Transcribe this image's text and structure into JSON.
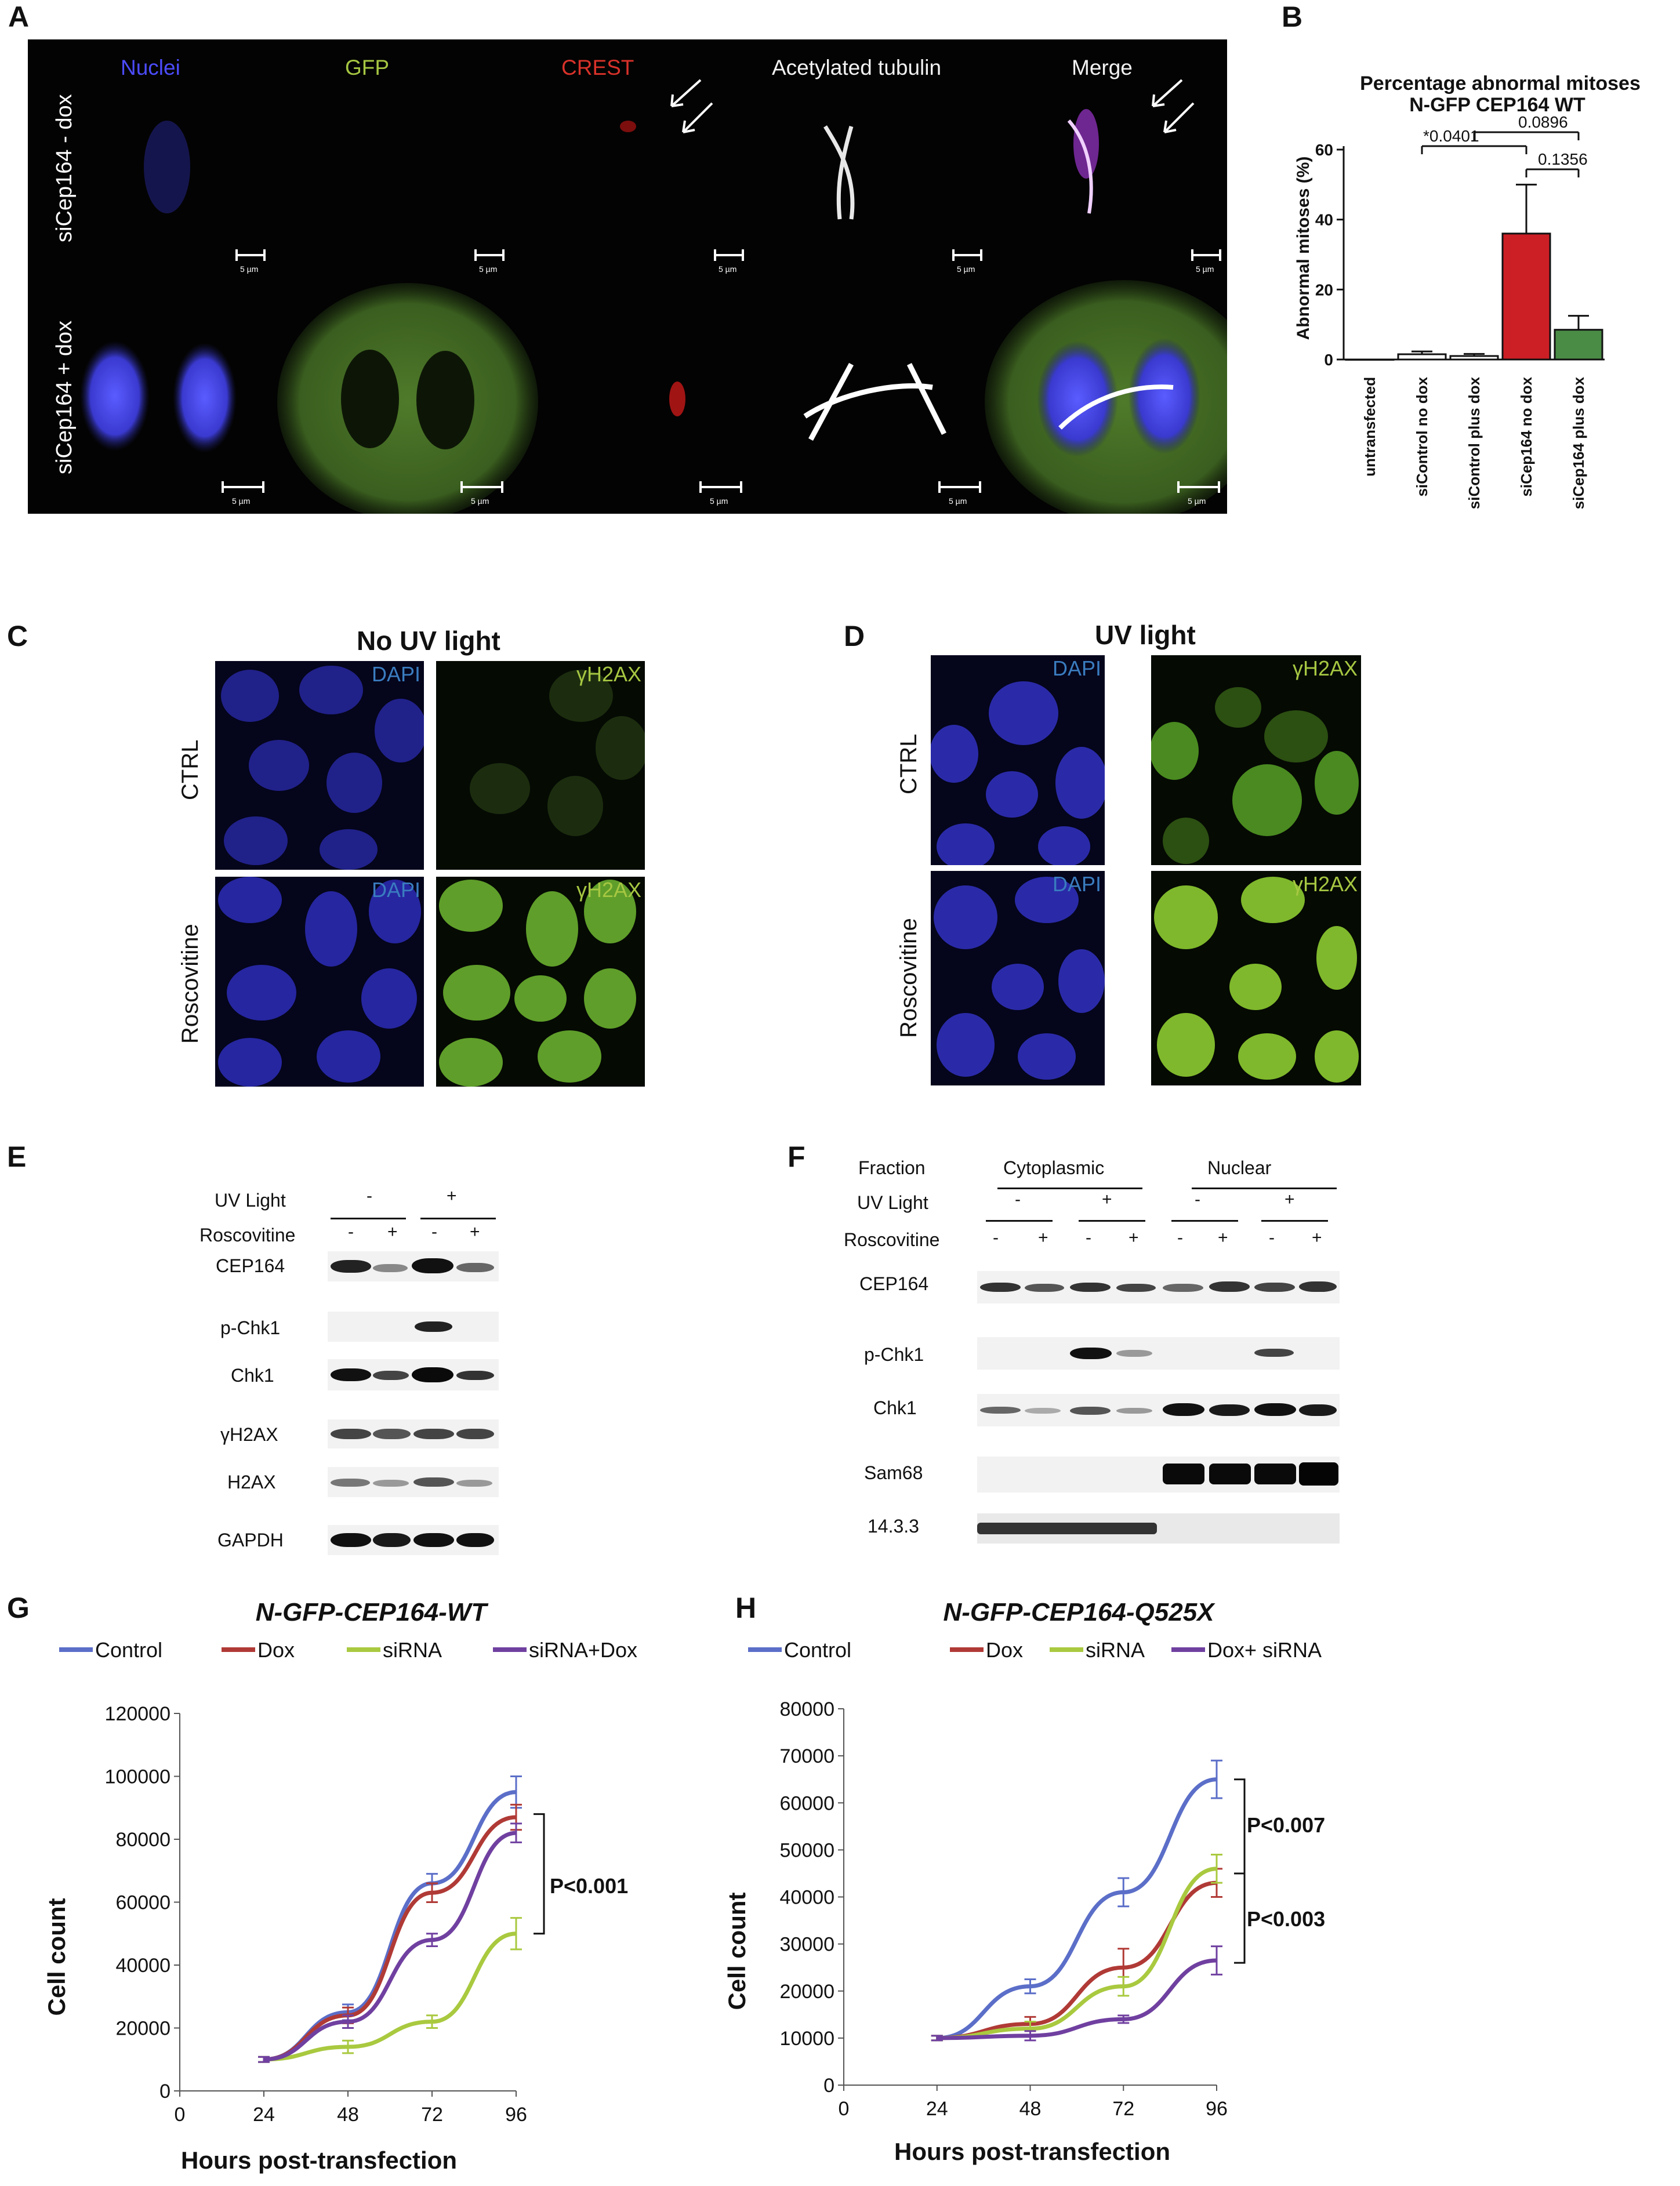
{
  "panels": {
    "A": "A",
    "B": "B",
    "C": "C",
    "D": "D",
    "E": "E",
    "F": "F",
    "G": "G",
    "H": "H"
  },
  "panelA": {
    "channels": [
      "Nuclei",
      "GFP",
      "CREST",
      "Acetylated tubulin",
      "Merge"
    ],
    "channel_colors": [
      "#4c4cff",
      "#a6c742",
      "#d8322a",
      "#f2f2f2",
      "#f2f2f2"
    ],
    "rows": [
      "siCep164 - dox",
      "siCep164 + dox"
    ],
    "scale": "5 µm"
  },
  "panelB": {
    "chart_data": {
      "type": "bar",
      "title": "Percentage abnormal mitoses",
      "subtitle": "N-GFP CEP164 WT",
      "ylabel": "Abnormal mitoses (%)",
      "ylim": [
        0,
        60
      ],
      "yticks": [
        "0",
        "20",
        "40",
        "60"
      ],
      "categories": [
        "untransfected",
        "siControl no dox",
        "siControl plus dox",
        "siCep164 no dox",
        "siCep164 plus dox"
      ],
      "values": [
        0,
        1.5,
        1,
        36,
        8.5
      ],
      "errors": [
        0,
        0.8,
        0.6,
        14,
        4
      ],
      "colors": [
        "#ffffff",
        "#ffffff",
        "#ffffff",
        "#cc1f25",
        "#4a8c45"
      ],
      "annotations": [
        "*0.0401",
        "0.0896",
        "0.1356"
      ]
    }
  },
  "panelC": {
    "title": "No UV light",
    "rows": [
      "CTRL",
      "Roscovitine"
    ],
    "channels": [
      "DAPI",
      "γH2AX"
    ]
  },
  "panelD": {
    "title": "UV light",
    "rows": [
      "CTRL",
      "Roscovitine"
    ],
    "channels": [
      "DAPI",
      "γH2AX"
    ]
  },
  "panelE": {
    "header_rows": [
      "UV Light",
      "Roscovitine"
    ],
    "uv_signs": [
      "-",
      "+"
    ],
    "rosc_signs": [
      "-",
      "+",
      "-",
      "+"
    ],
    "blots": [
      "CEP164",
      "p-Chk1",
      "Chk1",
      "γH2AX",
      "H2AX",
      "GAPDH"
    ]
  },
  "panelF": {
    "header_rows": [
      "Fraction",
      "UV Light",
      "Roscovitine"
    ],
    "fractions": [
      "Cytoplasmic",
      "Nuclear"
    ],
    "uv_signs": [
      "-",
      "+",
      "-",
      "+"
    ],
    "rosc_signs": [
      "-",
      "+",
      "-",
      "+",
      "-",
      "+",
      "-",
      "+"
    ],
    "blots": [
      "CEP164",
      "p-Chk1",
      "Chk1",
      "Sam68",
      "14.3.3"
    ]
  },
  "panelG": {
    "chart_data": {
      "type": "line",
      "title": "N-GFP-CEP164-WT",
      "xlabel": "Hours post-transfection",
      "ylabel": "Cell count",
      "x": [
        24,
        48,
        72,
        96
      ],
      "xticks": [
        "0",
        "24",
        "48",
        "72",
        "96"
      ],
      "yticks": [
        "0",
        "20000",
        "40000",
        "60000",
        "80000",
        "100000",
        "120000"
      ],
      "ylim": [
        0,
        120000
      ],
      "series": [
        {
          "name": "Control",
          "color": "#5b6ec8",
          "values": [
            10000,
            25000,
            66000,
            95000
          ],
          "err": [
            800,
            2500,
            3000,
            5000
          ]
        },
        {
          "name": "Dox",
          "color": "#b03a36",
          "values": [
            10000,
            24000,
            63000,
            87000
          ],
          "err": [
            800,
            2500,
            3000,
            4000
          ]
        },
        {
          "name": "siRNA",
          "color": "#a9c93f",
          "values": [
            10000,
            14000,
            22000,
            50000
          ],
          "err": [
            800,
            2000,
            2000,
            5000
          ]
        },
        {
          "name": "siRNA+Dox",
          "color": "#7040a0",
          "values": [
            10000,
            22000,
            48000,
            82000
          ],
          "err": [
            800,
            2000,
            2000,
            3000
          ]
        }
      ],
      "annotation": "P<0.001"
    }
  },
  "panelH": {
    "chart_data": {
      "type": "line",
      "title": "N-GFP-CEP164-Q525X",
      "xlabel": "Hours post-transfection",
      "ylabel": "Cell count",
      "x": [
        24,
        48,
        72,
        96
      ],
      "xticks": [
        "0",
        "24",
        "48",
        "72",
        "96"
      ],
      "yticks": [
        "0",
        "10000",
        "20000",
        "30000",
        "40000",
        "50000",
        "60000",
        "70000",
        "80000"
      ],
      "ylim": [
        0,
        80000
      ],
      "series": [
        {
          "name": "Control",
          "color": "#5b6ec8",
          "values": [
            10000,
            21000,
            41000,
            65000
          ],
          "err": [
            500,
            1500,
            3000,
            4000
          ]
        },
        {
          "name": "Dox",
          "color": "#b03a36",
          "values": [
            10000,
            13000,
            25000,
            43000
          ],
          "err": [
            500,
            1500,
            4000,
            3000
          ]
        },
        {
          "name": "siRNA",
          "color": "#a9c93f",
          "values": [
            10000,
            12000,
            21000,
            46000
          ],
          "err": [
            500,
            1500,
            2000,
            3000
          ]
        },
        {
          "name": "Dox+ siRNA",
          "color": "#7040a0",
          "values": [
            10000,
            10500,
            14000,
            26500
          ],
          "err": [
            500,
            1000,
            800,
            3000
          ]
        }
      ],
      "annotations": [
        "P<0.007",
        "P<0.003"
      ]
    }
  }
}
